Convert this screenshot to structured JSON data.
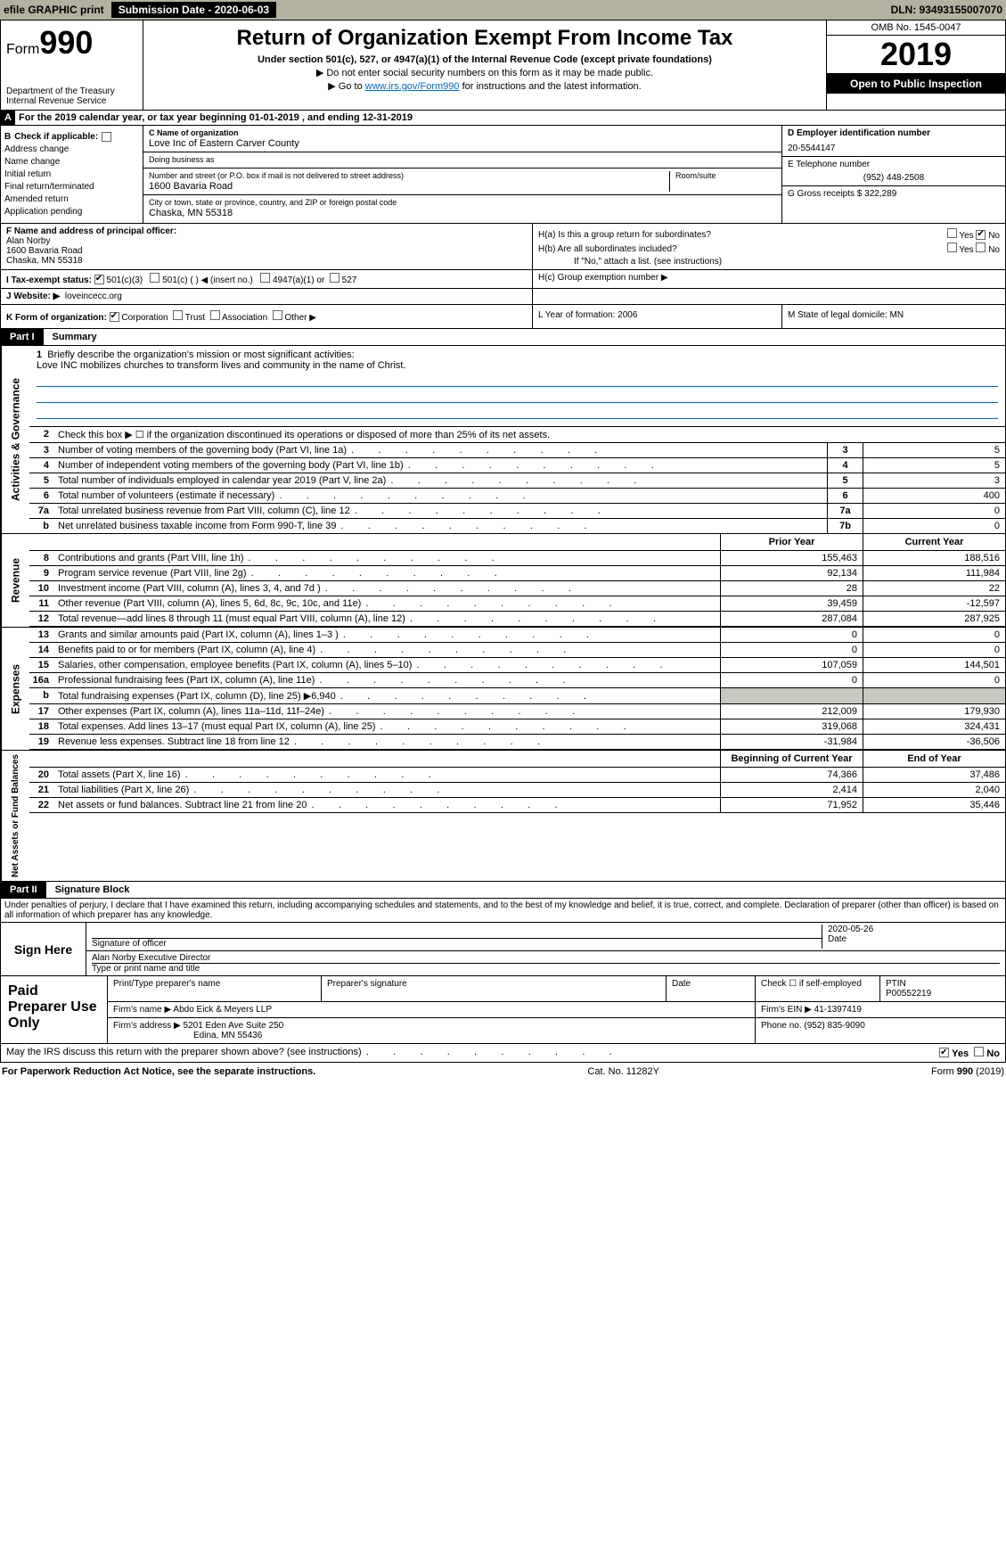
{
  "top": {
    "efile": "efile GRAPHIC print",
    "sub_label": "Submission Date - 2020-06-03",
    "dln": "DLN: 93493155007070"
  },
  "header": {
    "form_small": "Form",
    "form_num": "990",
    "dept": "Department of the Treasury",
    "irs": "Internal Revenue Service",
    "title": "Return of Organization Exempt From Income Tax",
    "subtitle": "Under section 501(c), 527, or 4947(a)(1) of the Internal Revenue Code (except private foundations)",
    "notice1": "▶ Do not enter social security numbers on this form as it may be made public.",
    "notice2_pre": "▶ Go to ",
    "notice2_link": "www.irs.gov/Form990",
    "notice2_post": " for instructions and the latest information.",
    "omb": "OMB No. 1545-0047",
    "year": "2019",
    "inspection": "Open to Public Inspection"
  },
  "line_a": "For the 2019 calendar year, or tax year beginning 01-01-2019        , and ending 12-31-2019",
  "col_b": {
    "header": "Check if applicable:",
    "items": [
      "Address change",
      "Name change",
      "Initial return",
      "Final return/terminated",
      "Amended return",
      "Application pending"
    ]
  },
  "col_c": {
    "name_label": "C Name of organization",
    "name": "Love Inc of Eastern Carver County",
    "dba_label": "Doing business as",
    "dba": "",
    "street_label": "Number and street (or P.O. box if mail is not delivered to street address)",
    "street": "1600 Bavaria Road",
    "room_label": "Room/suite",
    "city_label": "City or town, state or province, country, and ZIP or foreign postal code",
    "city": "Chaska, MN  55318"
  },
  "col_d": {
    "ein_label": "D Employer identification number",
    "ein": "20-5544147",
    "phone_label": "E Telephone number",
    "phone": "(952) 448-2508",
    "gross_label": "G Gross receipts $ 322,289"
  },
  "officer": {
    "label": "F  Name and address of principal officer:",
    "name": "Alan Norby",
    "street": "1600 Bavaria Road",
    "city": "Chaska, MN  55318"
  },
  "h": {
    "ha": "H(a)   Is this a group return for subordinates?",
    "hb": "H(b)   Are all subordinates included?",
    "hb_note": "If \"No,\" attach a list. (see instructions)",
    "hc": "H(c)   Group exemption number ▶",
    "yes": "Yes",
    "no": "No"
  },
  "tax_status": {
    "label": "I    Tax-exempt status:",
    "o1": "501(c)(3)",
    "o2": "501(c) (  ) ◀ (insert no.)",
    "o3": "4947(a)(1) or",
    "o4": "527"
  },
  "website": {
    "label": "J   Website: ▶",
    "value": "loveincecc.org"
  },
  "k": {
    "label": "K Form of organization:",
    "opts": [
      "Corporation",
      "Trust",
      "Association",
      "Other ▶"
    ],
    "l": "L Year of formation: 2006",
    "m": "M State of legal domicile: MN"
  },
  "part1": {
    "num": "Part I",
    "title": "Summary"
  },
  "brief": {
    "ln": "1",
    "label": "Briefly describe the organization's mission or most significant activities:",
    "text": "Love INC mobilizes churches to transform lives and community in the name of Christ."
  },
  "gov_lines": [
    {
      "ln": "2",
      "desc": "Check this box ▶ ☐ if the organization discontinued its operations or disposed of more than 25% of its net assets."
    },
    {
      "ln": "3",
      "desc": "Number of voting members of the governing body (Part VI, line 1a)",
      "n": "3",
      "v": "5"
    },
    {
      "ln": "4",
      "desc": "Number of independent voting members of the governing body (Part VI, line 1b)",
      "n": "4",
      "v": "5"
    },
    {
      "ln": "5",
      "desc": "Total number of individuals employed in calendar year 2019 (Part V, line 2a)",
      "n": "5",
      "v": "3"
    },
    {
      "ln": "6",
      "desc": "Total number of volunteers (estimate if necessary)",
      "n": "6",
      "v": "400"
    },
    {
      "ln": "7a",
      "desc": "Total unrelated business revenue from Part VIII, column (C), line 12",
      "n": "7a",
      "v": "0"
    },
    {
      "ln": "b",
      "desc": "Net unrelated business taxable income from Form 990-T, line 39",
      "n": "7b",
      "v": "0"
    }
  ],
  "col_headers": {
    "prior": "Prior Year",
    "current": "Current Year"
  },
  "revenue": [
    {
      "ln": "8",
      "desc": "Contributions and grants (Part VIII, line 1h)",
      "v1": "155,463",
      "v2": "188,516"
    },
    {
      "ln": "9",
      "desc": "Program service revenue (Part VIII, line 2g)",
      "v1": "92,134",
      "v2": "111,984"
    },
    {
      "ln": "10",
      "desc": "Investment income (Part VIII, column (A), lines 3, 4, and 7d )",
      "v1": "28",
      "v2": "22"
    },
    {
      "ln": "11",
      "desc": "Other revenue (Part VIII, column (A), lines 5, 6d, 8c, 9c, 10c, and 11e)",
      "v1": "39,459",
      "v2": "-12,597"
    },
    {
      "ln": "12",
      "desc": "Total revenue—add lines 8 through 11 (must equal Part VIII, column (A), line 12)",
      "v1": "287,084",
      "v2": "287,925"
    }
  ],
  "expenses": [
    {
      "ln": "13",
      "desc": "Grants and similar amounts paid (Part IX, column (A), lines 1–3 )",
      "v1": "0",
      "v2": "0"
    },
    {
      "ln": "14",
      "desc": "Benefits paid to or for members (Part IX, column (A), line 4)",
      "v1": "0",
      "v2": "0"
    },
    {
      "ln": "15",
      "desc": "Salaries, other compensation, employee benefits (Part IX, column (A), lines 5–10)",
      "v1": "107,059",
      "v2": "144,501"
    },
    {
      "ln": "16a",
      "desc": "Professional fundraising fees (Part IX, column (A), line 11e)",
      "v1": "0",
      "v2": "0"
    },
    {
      "ln": "b",
      "desc": "Total fundraising expenses (Part IX, column (D), line 25) ▶6,940",
      "v1": "",
      "v2": "",
      "grey": true
    },
    {
      "ln": "17",
      "desc": "Other expenses (Part IX, column (A), lines 11a–11d, 11f–24e)",
      "v1": "212,009",
      "v2": "179,930"
    },
    {
      "ln": "18",
      "desc": "Total expenses. Add lines 13–17 (must equal Part IX, column (A), line 25)",
      "v1": "319,068",
      "v2": "324,431"
    },
    {
      "ln": "19",
      "desc": "Revenue less expenses. Subtract line 18 from line 12",
      "v1": "-31,984",
      "v2": "-36,506"
    }
  ],
  "net_headers": {
    "begin": "Beginning of Current Year",
    "end": "End of Year"
  },
  "net": [
    {
      "ln": "20",
      "desc": "Total assets (Part X, line 16)",
      "v1": "74,366",
      "v2": "37,486"
    },
    {
      "ln": "21",
      "desc": "Total liabilities (Part X, line 26)",
      "v1": "2,414",
      "v2": "2,040"
    },
    {
      "ln": "22",
      "desc": "Net assets or fund balances. Subtract line 21 from line 20",
      "v1": "71,952",
      "v2": "35,446"
    }
  ],
  "part2": {
    "num": "Part II",
    "title": "Signature Block"
  },
  "penalties": "Under penalties of perjury, I declare that I have examined this return, including accompanying schedules and statements, and to the best of my knowledge and belief, it is true, correct, and complete. Declaration of preparer (other than officer) is based on all information of which preparer has any knowledge.",
  "sign": {
    "here": "Sign Here",
    "sig_label": "Signature of officer",
    "date": "2020-05-26",
    "date_label": "Date",
    "name": "Alan Norby  Executive Director",
    "name_label": "Type or print name and title"
  },
  "paid": {
    "label": "Paid Preparer Use Only",
    "c1": "Print/Type preparer's name",
    "c2": "Preparer's signature",
    "c3": "Date",
    "c4a": "Check ☐ if self-employed",
    "c4b": "PTIN",
    "ptin": "P00552219",
    "firm_name_label": "Firm's name      ▶",
    "firm_name": "Abdo Eick & Meyers LLP",
    "firm_ein_label": "Firm's EIN ▶",
    "firm_ein": "41-1397419",
    "firm_addr_label": "Firm's address ▶",
    "firm_addr1": "5201 Eden Ave Suite 250",
    "firm_addr2": "Edina, MN  55436",
    "phone_label": "Phone no.",
    "phone": "(952) 835-9090"
  },
  "discuss": "May the IRS discuss this return with the preparer shown above? (see instructions)",
  "footer": {
    "left": "For Paperwork Reduction Act Notice, see the separate instructions.",
    "mid": "Cat. No. 11282Y",
    "right": "Form 990 (2019)"
  },
  "vlabels": {
    "gov": "Activities & Governance",
    "rev": "Revenue",
    "exp": "Expenses",
    "net": "Net Assets or Fund Balances"
  }
}
